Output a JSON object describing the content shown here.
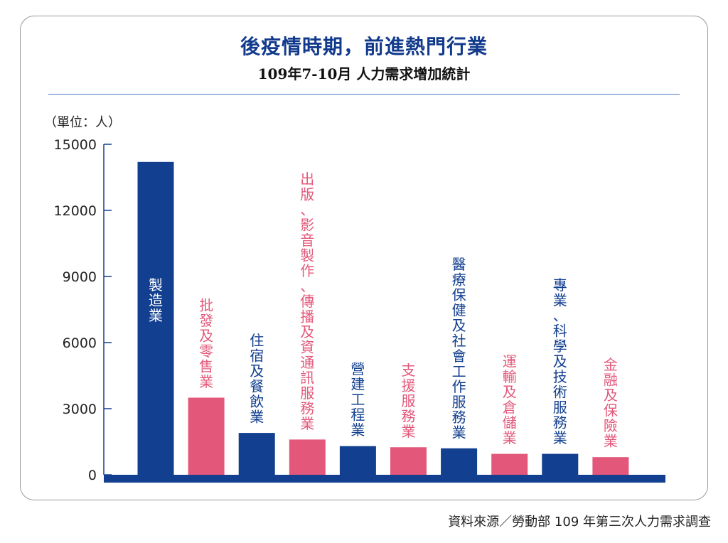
{
  "title": "後疫情時期，前進熱門行業",
  "subtitle": "109年7-10月 人力需求增加統計",
  "unit_label": "（單位：人）",
  "source": "資料來源／勞動部 109 年第三次人力需求調查",
  "colors": {
    "navy": "#123f8f",
    "pink": "#e3587a",
    "title": "#123a8c"
  },
  "chart_data": {
    "type": "bar",
    "title": "後疫情時期，前進熱門行業",
    "subtitle": "109年7-10月 人力需求增加統計",
    "ylabel": "（單位：人）",
    "xlabel": "",
    "ylim": [
      0,
      15000
    ],
    "yticks": [
      "15000",
      "12000",
      "9000",
      "6000",
      "3000",
      "0"
    ],
    "grid": false,
    "categories": [
      "製造業",
      "批發及零售業",
      "住宿及餐飲業",
      "出版、影音製作、傳播及資通訊服務業",
      "營建工程業",
      "支援服務業",
      "醫療保健及社會工作服務業",
      "運輸及倉儲業",
      "專業、科學及技術服務業",
      "金融及保險業"
    ],
    "values": [
      14200,
      3500,
      1900,
      1600,
      1300,
      1250,
      1200,
      950,
      950,
      800
    ],
    "bar_colors": [
      "#123f8f",
      "#e3587a",
      "#123f8f",
      "#e3587a",
      "#123f8f",
      "#e3587a",
      "#123f8f",
      "#e3587a",
      "#123f8f",
      "#e3587a"
    ],
    "label_colors": [
      "#ffffff",
      "#e3587a",
      "#123f8f",
      "#e3587a",
      "#123f8f",
      "#e3587a",
      "#123f8f",
      "#e3587a",
      "#123f8f",
      "#e3587a"
    ]
  }
}
